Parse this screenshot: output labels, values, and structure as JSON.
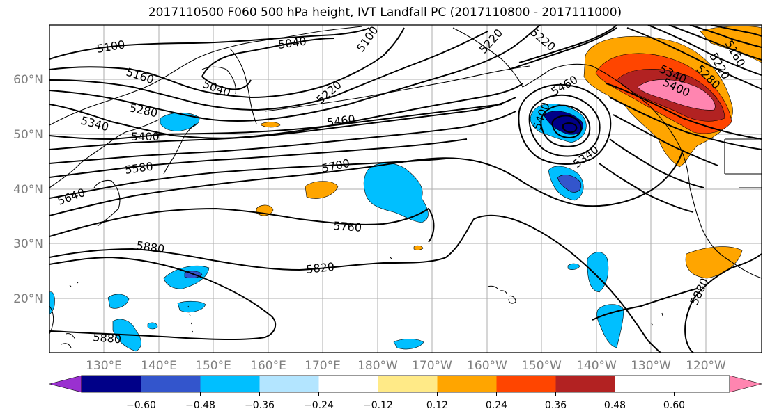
{
  "title": "2017110500 F060 500 hPa height, IVT Landfall PC (2017110800 - 2017111000)",
  "map": {
    "latitude_labels": [
      "60°N",
      "50°N",
      "40°N",
      "30°N",
      "20°N"
    ],
    "longitude_labels": [
      "130°E",
      "140°E",
      "150°E",
      "160°E",
      "170°E",
      "180°W",
      "170°W",
      "160°W",
      "150°W",
      "140°W",
      "130°W",
      "120°W"
    ],
    "contour_labels": [
      "5100",
      "5040",
      "5100",
      "5220",
      "5040",
      "5160",
      "5220",
      "5280",
      "5460",
      "5340",
      "5400",
      "5460",
      "5700",
      "5580",
      "5340",
      "5640",
      "5760",
      "5880",
      "5820",
      "5880",
      "5880",
      "5340",
      "5400",
      "5280",
      "5220",
      "5160",
      "5400",
      "5220"
    ]
  },
  "colorbar": {
    "colors": [
      "#9a30d0",
      "#000088",
      "#3355cc",
      "#00bfff",
      "#b3e5ff",
      "#ffffff",
      "#ffea87",
      "#ffa500",
      "#ff4500",
      "#b22222",
      "#ff85b0"
    ],
    "tick_labels": [
      "−0.60",
      "−0.48",
      "−0.36",
      "−0.24",
      "−0.12",
      "0.12",
      "0.24",
      "0.36",
      "0.48",
      "0.60"
    ]
  }
}
